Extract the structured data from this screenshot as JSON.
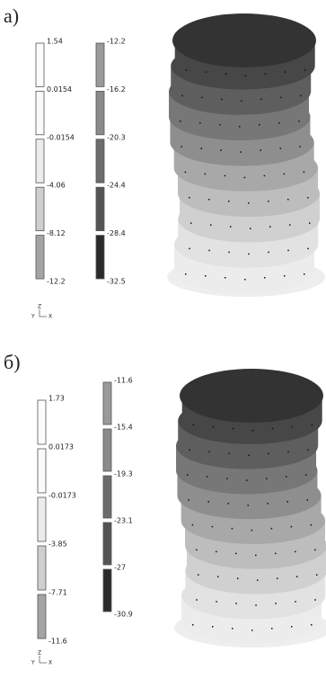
{
  "panels": [
    {
      "label": "а)",
      "legend_left": [
        "1.54",
        "0.0154",
        "-0.0154",
        "-4.06",
        "-8.12",
        "-12.2"
      ],
      "legend_right": [
        "-12.2",
        "-16.2",
        "-20.3",
        "-24.4",
        "-28.4",
        "-32.5"
      ],
      "axes": {
        "y": "Y",
        "z": "Z",
        "x": "X"
      }
    },
    {
      "label": "б)",
      "legend_left": [
        "1.73",
        "0.0173",
        "-0.0173",
        "-3.85",
        "-7.71",
        "-11.6"
      ],
      "legend_right": [
        "-11.6",
        "-15.4",
        "-19.3",
        "-23.1",
        "-27",
        "-30.9"
      ],
      "axes": {
        "y": "Y",
        "z": "Z",
        "x": "X"
      }
    }
  ]
}
